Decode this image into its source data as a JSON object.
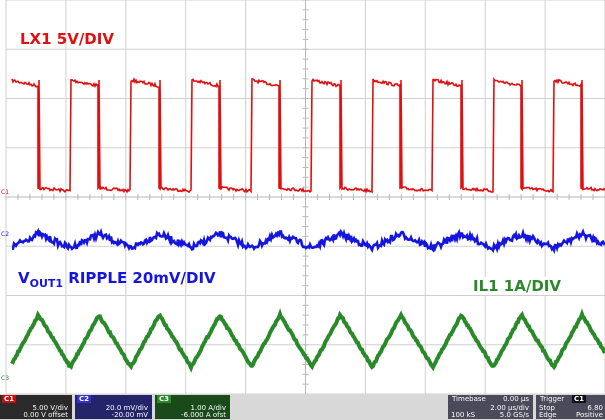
{
  "traces": {
    "lx1": {
      "label": "LX1 5V/DIV",
      "color": "#e01010"
    },
    "vout": {
      "label_main": "V",
      "label_sub": "OUT1",
      "label_rest": " RIPPLE  20mV/DIV",
      "color": "#1515e0"
    },
    "il1": {
      "label": "IL1 1A/DIV",
      "color": "#2a8a2a"
    }
  },
  "markers": {
    "c1": "C1",
    "c2": "C2",
    "c3": "C3"
  },
  "status": {
    "ch1": {
      "tag": "C1",
      "scale": "5.00 V/div",
      "offset": "0.00 V offset"
    },
    "ch2": {
      "tag": "C2",
      "scale": "20.0 mV/div",
      "offset": "-20.00 mV"
    },
    "ch3": {
      "tag": "C3",
      "scale": "1.00 A/div",
      "offset": "-6.000 A ofst"
    },
    "timebase": {
      "title": "Timebase",
      "value": "0.00 µs",
      "rate": "2.00 µs/div",
      "samples": "100 kS",
      "srate": "5.0 GS/s"
    },
    "trigger": {
      "title": "Trigger",
      "tag": "C1",
      "mode": "Stop",
      "type": "Edge",
      "level": "6.80",
      "slope": "Positive"
    }
  }
}
